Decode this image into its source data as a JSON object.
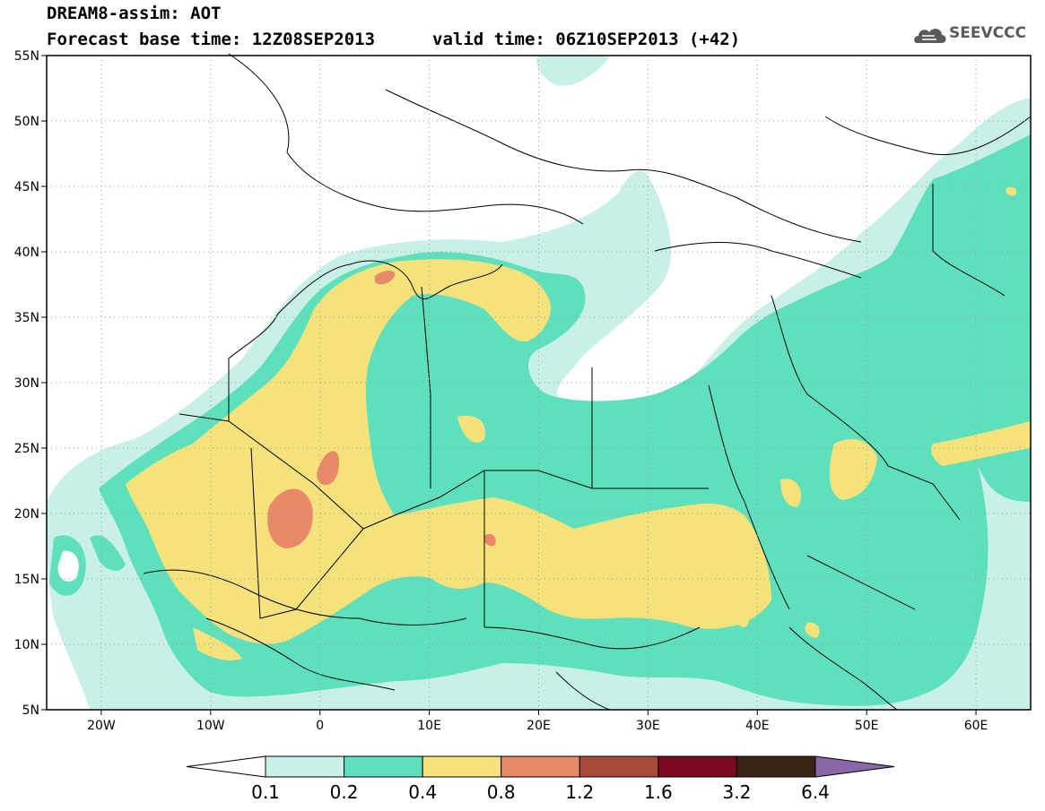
{
  "title": {
    "line1": "DREAM8-assim: AOT",
    "line2": "Forecast base time: 12Z08SEP2013",
    "valid": "valid time: 06Z10SEP2013 (+42)"
  },
  "logo": {
    "text": "SEEVCCC",
    "icon": "cloud-logo-icon",
    "color": "#5a5a5a"
  },
  "map": {
    "lon_range": [
      -25,
      65
    ],
    "lat_range": [
      5,
      55
    ],
    "lat_ticks": [
      "55N",
      "50N",
      "45N",
      "40N",
      "35N",
      "30N",
      "25N",
      "20N",
      "15N",
      "10N",
      "5N"
    ],
    "lon_ticks": [
      "20W",
      "10W",
      "0",
      "10E",
      "20E",
      "30E",
      "40E",
      "50E",
      "60E"
    ],
    "gridlines": "dotted"
  },
  "colorbar": {
    "labels": [
      "0.1",
      "0.2",
      "0.4",
      "0.8",
      "1.2",
      "1.6",
      "3.2",
      "6.4"
    ],
    "colors": [
      "#ffffff",
      "#c8f0e8",
      "#5fe0bd",
      "#f5e27a",
      "#e8896a",
      "#a84b3a",
      "#7a0a24",
      "#3b2416",
      "#8a68a8"
    ]
  }
}
